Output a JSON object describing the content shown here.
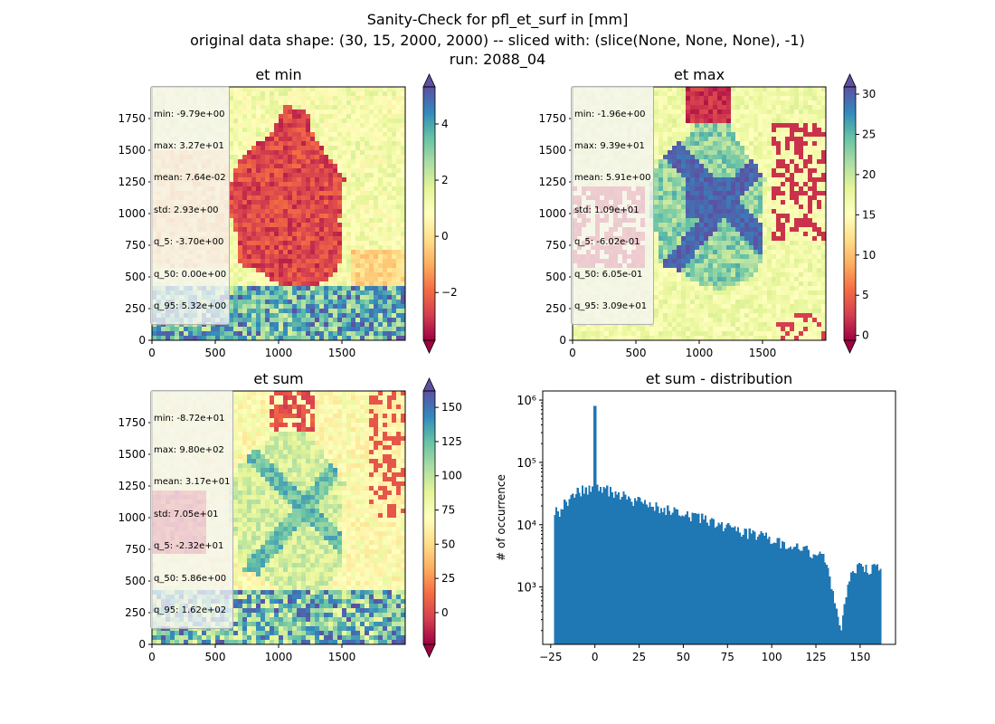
{
  "figure": {
    "title_line1": "Sanity-Check for pfl_et_surf in [mm]",
    "title_line2": "original data shape: (30, 15, 2000, 2000) -- sliced with: (slice(None, None, None), -1)",
    "title_line3": "run: 2088_04"
  },
  "colormap": "Spectral",
  "colors": {
    "bar": "#1f77b4"
  },
  "panels": [
    {
      "id": "et_min",
      "title": "et min",
      "xticks": [
        "0",
        "500",
        "1000",
        "1500"
      ],
      "yticks": [
        "0",
        "250",
        "500",
        "750",
        "1000",
        "1250",
        "1500",
        "1750"
      ],
      "extent": [
        0,
        2000,
        0,
        2000
      ],
      "colorbar": {
        "ticks": [
          "−2",
          "0",
          "2",
          "4"
        ],
        "tick_values": [
          -2,
          0,
          2,
          4
        ],
        "vmin": -3.7,
        "vmax": 5.32,
        "extend": "both"
      },
      "stats": [
        "min: -9.79e+00",
        "max: 3.27e+01",
        "mean: 7.64e-02",
        "std: 2.93e+00",
        "q_5: -3.70e+00",
        "q_50: 0.00e+00",
        "q_95: 5.32e+00"
      ]
    },
    {
      "id": "et_max",
      "title": "et max",
      "xticks": [
        "0",
        "500",
        "1000",
        "1500"
      ],
      "yticks": [
        "0",
        "250",
        "500",
        "750",
        "1000",
        "1250",
        "1500",
        "1750"
      ],
      "extent": [
        0,
        2000,
        0,
        2000
      ],
      "colorbar": {
        "ticks": [
          "0",
          "5",
          "10",
          "15",
          "20",
          "25",
          "30"
        ],
        "tick_values": [
          0,
          5,
          10,
          15,
          20,
          25,
          30
        ],
        "vmin": -0.6,
        "vmax": 30.9,
        "extend": "both"
      },
      "stats": [
        "min: -1.96e+00",
        "max: 9.39e+01",
        "mean: 5.91e+00",
        "std: 1.09e+01",
        "q_5: -6.02e-01",
        "q_50: 6.05e-01",
        "q_95: 3.09e+01"
      ]
    },
    {
      "id": "et_sum",
      "title": "et sum",
      "xticks": [
        "0",
        "500",
        "1000",
        "1500"
      ],
      "yticks": [
        "0",
        "250",
        "500",
        "750",
        "1000",
        "1250",
        "1500",
        "1750"
      ],
      "extent": [
        0,
        2000,
        0,
        2000
      ],
      "colorbar": {
        "ticks": [
          "0",
          "25",
          "50",
          "75",
          "100",
          "125",
          "150"
        ],
        "tick_values": [
          0,
          25,
          50,
          75,
          100,
          125,
          150
        ],
        "vmin": -23.2,
        "vmax": 162,
        "extend": "both"
      },
      "stats": [
        "min: -8.72e+01",
        "max: 9.80e+02",
        "mean: 3.17e+01",
        "std: 7.05e+01",
        "q_5: -2.32e+01",
        "q_50: 5.86e+00",
        "q_95: 1.62e+02"
      ]
    }
  ],
  "chart_data": {
    "type": "bar",
    "title": "et sum - distribution",
    "xlabel": "",
    "ylabel": "# of occurrence",
    "xticks": [
      "−25",
      "0",
      "25",
      "50",
      "75",
      "100",
      "125",
      "150"
    ],
    "xtick_values": [
      -25,
      0,
      25,
      50,
      75,
      100,
      125,
      150
    ],
    "yticks": [
      "10³",
      "10⁴",
      "10⁵",
      "10⁶"
    ],
    "ytick_values": [
      1000,
      10000,
      100000,
      1000000
    ],
    "yscale": "log",
    "xlim": [
      -29.5,
      170
    ],
    "ylim": [
      120,
      1400000
    ],
    "bin_range": [
      -23.2,
      162
    ],
    "series_profile": [
      {
        "x": -23,
        "y": 15000
      },
      {
        "x": -20,
        "y": 17000
      },
      {
        "x": -15,
        "y": 24000
      },
      {
        "x": -10,
        "y": 32000
      },
      {
        "x": -5,
        "y": 38000
      },
      {
        "x": -1,
        "y": 40000
      },
      {
        "x": 0,
        "y": 800000
      },
      {
        "x": 1,
        "y": 40000
      },
      {
        "x": 5,
        "y": 38000
      },
      {
        "x": 10,
        "y": 33000
      },
      {
        "x": 20,
        "y": 26000
      },
      {
        "x": 30,
        "y": 21000
      },
      {
        "x": 40,
        "y": 18000
      },
      {
        "x": 50,
        "y": 15000
      },
      {
        "x": 60,
        "y": 12500
      },
      {
        "x": 75,
        "y": 9500
      },
      {
        "x": 90,
        "y": 7000
      },
      {
        "x": 100,
        "y": 5800
      },
      {
        "x": 110,
        "y": 4700
      },
      {
        "x": 120,
        "y": 3800
      },
      {
        "x": 130,
        "y": 3000
      },
      {
        "x": 139,
        "y": 200
      },
      {
        "x": 145,
        "y": 2200
      },
      {
        "x": 155,
        "y": 1900
      },
      {
        "x": 160,
        "y": 2000
      }
    ]
  }
}
